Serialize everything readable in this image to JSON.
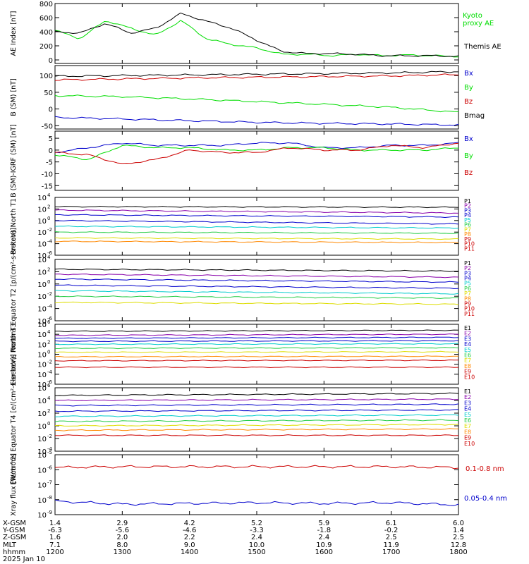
{
  "colors": {
    "black": "#000000",
    "green": "#00dd00",
    "red": "#cc0000",
    "blue": "#0000cc",
    "purple": "#8800aa",
    "cyan": "#00cccc",
    "yellow": "#dddd00",
    "orange": "#ff8800",
    "lightgreen": "#22cc44",
    "gray": "#aaaaaa"
  },
  "chart_data": [
    {
      "type": "line",
      "ylabel": "AE Index [nT]",
      "scale": "linear",
      "ylim": [
        -50,
        800
      ],
      "yticks": [
        0,
        200,
        400,
        600,
        800
      ],
      "yticklabels": [
        "0",
        "200",
        "400",
        "600",
        "800"
      ],
      "grid": false,
      "x": [
        1200,
        1215,
        1230,
        1245,
        1300,
        1315,
        1330,
        1345,
        1400,
        1430,
        1500,
        1530,
        1600,
        1630,
        1700,
        1730,
        1800
      ],
      "series": [
        {
          "name": "Kyoto proxy AE",
          "color": "green",
          "values": [
            420,
            300,
            560,
            450,
            350,
            560,
            300,
            220,
            170,
            80,
            80,
            60,
            80,
            60,
            70,
            60,
            50
          ]
        },
        {
          "name": "Themis AE",
          "color": "black",
          "values": [
            400,
            380,
            520,
            380,
            450,
            660,
            550,
            450,
            280,
            120,
            90,
            90,
            80,
            60,
            60,
            60,
            50
          ]
        }
      ],
      "legend": [
        "Kyoto",
        "proxy AE",
        "Themis AE"
      ]
    },
    {
      "type": "line",
      "ylabel": "B (SM) [nT]",
      "scale": "linear",
      "ylim": [
        -60,
        130
      ],
      "yticks": [
        -50,
        0,
        50,
        100
      ],
      "yticklabels": [
        "-50",
        "0",
        "50",
        "100"
      ],
      "x": [
        1200,
        1300,
        1400,
        1500,
        1600,
        1700,
        1800
      ],
      "series": [
        {
          "name": "Bx",
          "color": "blue",
          "values": [
            -25,
            -30,
            -35,
            -40,
            -43,
            -45,
            -48
          ]
        },
        {
          "name": "By",
          "color": "green",
          "values": [
            40,
            37,
            30,
            22,
            14,
            5,
            -10
          ]
        },
        {
          "name": "Bz",
          "color": "red",
          "values": [
            87,
            90,
            93,
            95,
            97,
            99,
            103
          ]
        },
        {
          "name": "Bmag",
          "color": "black",
          "values": [
            98,
            100,
            102,
            104,
            106,
            108,
            112
          ]
        }
      ],
      "legend": [
        "Bx",
        "By",
        "Bz",
        "Bmag"
      ]
    },
    {
      "type": "line",
      "ylabel": "B (SM)-IGRF (SM) [nT]",
      "scale": "linear",
      "ylim": [
        -17,
        8
      ],
      "yticks": [
        -15,
        -10,
        -5,
        0,
        5
      ],
      "yticklabels": [
        "-15",
        "-10",
        "-5",
        "0",
        "5"
      ],
      "x": [
        1200,
        1230,
        1300,
        1330,
        1400,
        1430,
        1500,
        1530,
        1600,
        1630,
        1700,
        1730,
        1800
      ],
      "series": [
        {
          "name": "Bx",
          "color": "blue",
          "values": [
            -1,
            1,
            3,
            2,
            2,
            2,
            3,
            3,
            1,
            1,
            2,
            2,
            3
          ]
        },
        {
          "name": "By",
          "color": "green",
          "values": [
            -2,
            -4,
            2,
            1,
            1,
            0,
            0,
            1,
            1,
            0,
            0,
            0,
            1
          ]
        },
        {
          "name": "Bz",
          "color": "red",
          "values": [
            -1,
            -2,
            -6,
            -4,
            0,
            -1,
            -1,
            1,
            0,
            0,
            2,
            1,
            3
          ]
        }
      ],
      "legend": [
        "Bx",
        "By",
        "Bz"
      ]
    },
    {
      "type": "line",
      "ylabel": "Protons North T1",
      "scale": "log",
      "ylim_exp": [
        -6,
        4
      ],
      "yticks_exp": [
        -6,
        -4,
        -2,
        0,
        2,
        4
      ],
      "tick_prefix": "10",
      "x": [
        1200,
        1800
      ],
      "series": [
        {
          "name": "P1",
          "color": "black",
          "values_log": [
            2.4,
            2.3
          ]
        },
        {
          "name": "P2",
          "color": "purple",
          "values_log": [
            1.8,
            1.3
          ]
        },
        {
          "name": "P3",
          "color": "blue",
          "values_log": [
            1.0,
            0.6
          ]
        },
        {
          "name": "P4",
          "color": "blue",
          "values_log": [
            0.0,
            -0.6
          ]
        },
        {
          "name": "P5",
          "color": "cyan",
          "values_log": [
            -1.0,
            -1.3
          ]
        },
        {
          "name": "P6",
          "color": "lightgreen",
          "values_log": [
            -2.0,
            -2.2
          ]
        },
        {
          "name": "P7",
          "color": "yellow",
          "values_log": [
            -3.0,
            -3.2
          ]
        },
        {
          "name": "P8",
          "color": "orange",
          "values_log": [
            -3.6,
            -3.8
          ]
        }
      ],
      "legend": [
        "P1",
        "P2",
        "P3",
        "P4",
        "P5",
        "P6",
        "P7",
        "P8",
        "P9",
        "P10",
        "P11"
      ],
      "legend_colors": [
        "black",
        "purple",
        "blue",
        "blue",
        "cyan",
        "lightgreen",
        "yellow",
        "orange",
        "red",
        "red",
        "red"
      ]
    },
    {
      "type": "line",
      "ylabel": "Protons Equator T2 [p/(cm²-s-sr-keV)]",
      "scale": "log",
      "ylim_exp": [
        -6,
        4
      ],
      "yticks_exp": [
        -6,
        -4,
        -2,
        0,
        2,
        4
      ],
      "tick_prefix": "10",
      "x": [
        1200,
        1800
      ],
      "series": [
        {
          "name": "P1",
          "color": "black",
          "values_log": [
            2.4,
            2.1
          ]
        },
        {
          "name": "P2",
          "color": "purple",
          "values_log": [
            1.6,
            1.1
          ]
        },
        {
          "name": "P3",
          "color": "blue",
          "values_log": [
            0.8,
            0.3
          ]
        },
        {
          "name": "P4",
          "color": "blue",
          "values_log": [
            -0.2,
            -0.7
          ]
        },
        {
          "name": "P5",
          "color": "cyan",
          "values_log": [
            -1.1,
            -1.6
          ]
        },
        {
          "name": "P6",
          "color": "lightgreen",
          "values_log": [
            -2.0,
            -2.3
          ]
        },
        {
          "name": "P7",
          "color": "yellow",
          "values_log": [
            -3.0,
            -3.3
          ]
        }
      ],
      "legend": [
        "P1",
        "P2",
        "P3",
        "P4",
        "P5",
        "P6",
        "P7",
        "P8",
        "P9",
        "P10",
        "P11"
      ],
      "legend_colors": [
        "black",
        "purple",
        "blue",
        "blue",
        "cyan",
        "lightgreen",
        "yellow",
        "orange",
        "red",
        "red",
        "red"
      ]
    },
    {
      "type": "line",
      "ylabel": "Electrons North T3",
      "scale": "log",
      "ylim_exp": [
        -6,
        6
      ],
      "yticks_exp": [
        -6,
        -4,
        -2,
        0,
        2,
        4,
        6
      ],
      "tick_prefix": "10",
      "x": [
        1200,
        1800
      ],
      "series": [
        {
          "name": "E1",
          "color": "black",
          "values_log": [
            4.6,
            4.8
          ]
        },
        {
          "name": "E2",
          "color": "purple",
          "values_log": [
            3.8,
            4.0
          ]
        },
        {
          "name": "E3",
          "color": "blue",
          "values_log": [
            3.2,
            3.4
          ]
        },
        {
          "name": "E4",
          "color": "blue",
          "values_log": [
            2.6,
            2.7
          ]
        },
        {
          "name": "E5",
          "color": "cyan",
          "values_log": [
            2.0,
            2.1
          ]
        },
        {
          "name": "E6",
          "color": "lightgreen",
          "values_log": [
            1.2,
            1.3
          ]
        },
        {
          "name": "E7",
          "color": "yellow",
          "values_log": [
            0.4,
            0.5
          ]
        },
        {
          "name": "E8",
          "color": "orange",
          "values_log": [
            -0.5,
            -0.4
          ]
        },
        {
          "name": "E9",
          "color": "red",
          "values_log": [
            -1.3,
            -1.2
          ]
        },
        {
          "name": "E10",
          "color": "red",
          "values_log": [
            -2.6,
            -2.6
          ]
        }
      ],
      "legend": [
        "E1",
        "E2",
        "E3",
        "E4",
        "E5",
        "E6",
        "E7",
        "E8",
        "E9",
        "E10"
      ],
      "legend_colors": [
        "black",
        "purple",
        "blue",
        "blue",
        "cyan",
        "lightgreen",
        "yellow",
        "orange",
        "red",
        "red"
      ]
    },
    {
      "type": "line",
      "ylabel": "Electrons Equator T4 [e/(cm²-s-sr-keV)]",
      "scale": "log",
      "ylim_exp": [
        -4,
        6
      ],
      "yticks_exp": [
        -4,
        -2,
        0,
        2,
        4,
        6
      ],
      "tick_prefix": "10",
      "x": [
        1200,
        1800
      ],
      "series": [
        {
          "name": "E1",
          "color": "black",
          "values_log": [
            4.8,
            5.1
          ]
        },
        {
          "name": "E2",
          "color": "purple",
          "values_log": [
            4.0,
            4.2
          ]
        },
        {
          "name": "E3",
          "color": "blue",
          "values_log": [
            3.2,
            3.4
          ]
        },
        {
          "name": "E4",
          "color": "blue",
          "values_log": [
            2.3,
            2.5
          ]
        },
        {
          "name": "E5",
          "color": "cyan",
          "values_log": [
            1.5,
            1.7
          ]
        },
        {
          "name": "E6",
          "color": "lightgreen",
          "values_log": [
            0.7,
            0.9
          ]
        },
        {
          "name": "E7",
          "color": "yellow",
          "values_log": [
            0.0,
            0.2
          ]
        },
        {
          "name": "E8",
          "color": "orange",
          "values_log": [
            -0.7,
            -0.5
          ]
        },
        {
          "name": "E9",
          "color": "red",
          "values_log": [
            -1.5,
            -1.5
          ]
        }
      ],
      "legend": [
        "E1",
        "E2",
        "E3",
        "E4",
        "E5",
        "E6",
        "E7",
        "E8",
        "E9",
        "E10"
      ],
      "legend_colors": [
        "black",
        "purple",
        "blue",
        "blue",
        "cyan",
        "lightgreen",
        "yellow",
        "orange",
        "red",
        "red"
      ]
    },
    {
      "type": "line",
      "ylabel": "Xray flux [W/m^2]",
      "scale": "log",
      "ylim_exp": [
        -9,
        -5
      ],
      "yticks_exp": [
        -9,
        -8,
        -7,
        -6,
        -5
      ],
      "tick_prefix": "10",
      "x": [
        1200,
        1300,
        1400,
        1500,
        1600,
        1700,
        1800
      ],
      "series": [
        {
          "name": "0.1-0.8 nm",
          "color": "red",
          "values_log": [
            -5.85,
            -5.8,
            -5.8,
            -5.8,
            -5.8,
            -5.8,
            -5.85
          ]
        },
        {
          "name": "0.05-0.4 nm",
          "color": "blue",
          "values_log": [
            -8.1,
            -8.3,
            -8.25,
            -8.2,
            -8.25,
            -8.2,
            -8.35
          ]
        }
      ],
      "legend": [
        "0.1-0.8 nm",
        "0.05-0.4 nm"
      ]
    }
  ],
  "orbit_table": {
    "row_labels": [
      "X-GSM",
      "Y-GSM",
      "Z-GSM",
      "MLT",
      "hhmm",
      "2025 Jan 10"
    ],
    "columns": [
      [
        "1.4",
        "-6.3",
        "1.6",
        "7.1",
        "1200"
      ],
      [
        "2.9",
        "-5.6",
        "2.0",
        "8.0",
        "1300"
      ],
      [
        "4.2",
        "-4.6",
        "2.2",
        "9.0",
        "1400"
      ],
      [
        "5.2",
        "-3.3",
        "2.4",
        "10.0",
        "1500"
      ],
      [
        "5.9",
        "-1.8",
        "2.4",
        "10.9",
        "1600"
      ],
      [
        "6.1",
        "-0.2",
        "2.5",
        "11.9",
        "1700"
      ],
      [
        "6.0",
        "1.4",
        "2.5",
        "12.8",
        "1800"
      ]
    ]
  }
}
